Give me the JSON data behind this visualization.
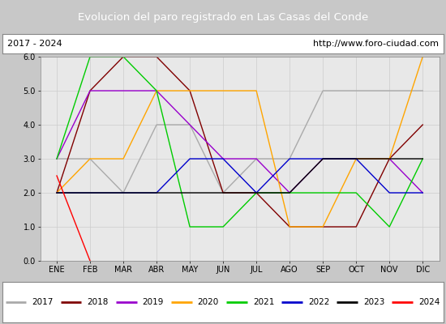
{
  "title": "Evolucion del paro registrado en Las Casas del Conde",
  "subtitle_left": "2017 - 2024",
  "subtitle_right": "http://www.foro-ciudad.com",
  "title_bg_color": "#5b8dd9",
  "title_text_color": "#ffffff",
  "months": [
    "ENE",
    "FEB",
    "MAR",
    "ABR",
    "MAY",
    "JUN",
    "JUL",
    "AGO",
    "SEP",
    "OCT",
    "NOV",
    "DIC"
  ],
  "ylim": [
    0.0,
    6.0
  ],
  "yticks": [
    0.0,
    1.0,
    2.0,
    3.0,
    4.0,
    5.0,
    6.0
  ],
  "series": {
    "2017": {
      "color": "#aaaaaa",
      "data": [
        3.0,
        3.0,
        2.0,
        4.0,
        4.0,
        2.0,
        3.0,
        3.0,
        5.0,
        5.0,
        5.0,
        5.0
      ]
    },
    "2018": {
      "color": "#800000",
      "data": [
        2.0,
        5.0,
        6.0,
        6.0,
        5.0,
        2.0,
        2.0,
        1.0,
        1.0,
        1.0,
        3.0,
        4.0
      ]
    },
    "2019": {
      "color": "#9900cc",
      "data": [
        3.0,
        5.0,
        5.0,
        5.0,
        4.0,
        3.0,
        3.0,
        2.0,
        3.0,
        3.0,
        3.0,
        2.0
      ]
    },
    "2020": {
      "color": "#ffa500",
      "data": [
        2.0,
        3.0,
        3.0,
        5.0,
        5.0,
        5.0,
        5.0,
        1.0,
        1.0,
        3.0,
        3.0,
        6.0
      ]
    },
    "2021": {
      "color": "#00cc00",
      "data": [
        3.0,
        6.0,
        6.0,
        5.0,
        1.0,
        1.0,
        2.0,
        2.0,
        2.0,
        2.0,
        1.0,
        3.0
      ]
    },
    "2022": {
      "color": "#0000cc",
      "data": [
        2.0,
        2.0,
        2.0,
        2.0,
        3.0,
        3.0,
        2.0,
        3.0,
        3.0,
        3.0,
        2.0,
        2.0
      ]
    },
    "2023": {
      "color": "#000000",
      "data": [
        2.0,
        2.0,
        2.0,
        2.0,
        2.0,
        2.0,
        2.0,
        2.0,
        3.0,
        3.0,
        3.0,
        3.0
      ]
    },
    "2024": {
      "color": "#ff0000",
      "data": [
        2.5,
        0.0,
        null,
        null,
        null,
        null,
        null,
        null,
        null,
        null,
        null,
        null
      ]
    }
  },
  "legend_order": [
    "2017",
    "2018",
    "2019",
    "2020",
    "2021",
    "2022",
    "2023",
    "2024"
  ],
  "grid_color": "#cccccc",
  "plot_bg_color": "#e8e8e8",
  "fig_bg_color": "#c8c8c8"
}
